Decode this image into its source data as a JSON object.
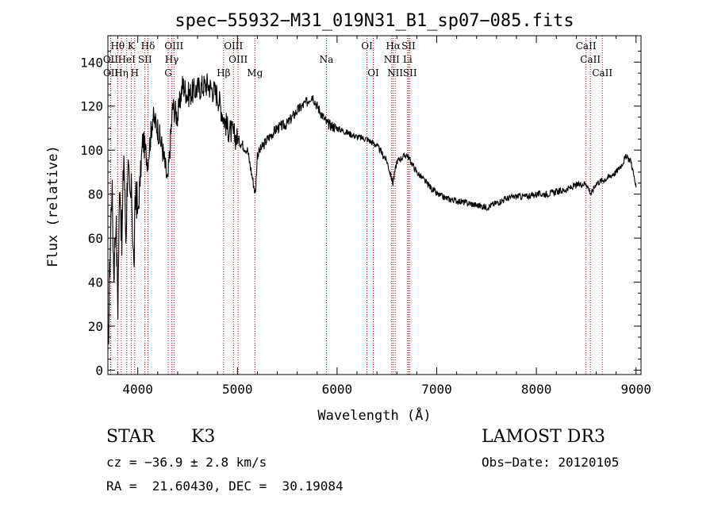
{
  "chart_data": {
    "type": "line",
    "title": "spec−55932−M31_019N31_B1_sp07−085.fits",
    "xlabel": "Wavelength (Å)",
    "ylabel": "Flux (relative)",
    "xlim": [
      3700,
      9050
    ],
    "ylim": [
      -2,
      152
    ],
    "x_ticks": [
      4000,
      5000,
      6000,
      7000,
      8000,
      9000
    ],
    "y_ticks": [
      0,
      20,
      40,
      60,
      80,
      100,
      120,
      140
    ],
    "grid": false,
    "series": [
      {
        "name": "flux",
        "x": [
          3700,
          3720,
          3740,
          3760,
          3780,
          3800,
          3820,
          3840,
          3860,
          3880,
          3900,
          3920,
          3940,
          3960,
          3980,
          4000,
          4050,
          4100,
          4150,
          4200,
          4250,
          4300,
          4350,
          4400,
          4450,
          4500,
          4600,
          4700,
          4800,
          4860,
          4900,
          5000,
          5100,
          5180,
          5200,
          5300,
          5400,
          5500,
          5600,
          5700,
          5750,
          5800,
          5900,
          6000,
          6100,
          6200,
          6300,
          6400,
          6500,
          6560,
          6600,
          6700,
          6800,
          6900,
          7000,
          7100,
          7200,
          7300,
          7400,
          7500,
          7600,
          7700,
          7800,
          7900,
          8000,
          8100,
          8200,
          8300,
          8400,
          8500,
          8550,
          8600,
          8700,
          8800,
          8850,
          8900,
          8950,
          9000
        ],
        "values": [
          2,
          50,
          85,
          45,
          70,
          30,
          90,
          55,
          100,
          60,
          95,
          75,
          80,
          45,
          85,
          70,
          105,
          95,
          115,
          110,
          100,
          85,
          120,
          115,
          130,
          125,
          128,
          130,
          125,
          115,
          110,
          105,
          100,
          80,
          98,
          105,
          110,
          112,
          118,
          122,
          125,
          120,
          112,
          110,
          108,
          106,
          105,
          102,
          95,
          85,
          95,
          98,
          90,
          85,
          80,
          78,
          77,
          76,
          75,
          74,
          76,
          78,
          79,
          79,
          80,
          80,
          81,
          82,
          84,
          85,
          80,
          85,
          87,
          90,
          93,
          97,
          95,
          83
        ]
      }
    ],
    "line_markers": [
      {
        "label": "Hθ",
        "wavelength": 3798,
        "row": 1
      },
      {
        "label": "K",
        "wavelength": 3934,
        "row": 1
      },
      {
        "label": "Hδ",
        "wavelength": 4102,
        "row": 1
      },
      {
        "label": "OIII",
        "wavelength": 4363,
        "row": 1
      },
      {
        "label": "OIII",
        "wavelength": 4960,
        "row": 1
      },
      {
        "label": "OI",
        "wavelength": 6300,
        "row": 1
      },
      {
        "label": "Hα",
        "wavelength": 6563,
        "row": 1
      },
      {
        "label": "SII",
        "wavelength": 6717,
        "row": 1
      },
      {
        "label": "CaII",
        "wavelength": 8498,
        "row": 1
      },
      {
        "label": "OII",
        "wavelength": 3727,
        "row": 2
      },
      {
        "label": "HeI",
        "wavelength": 3889,
        "row": 2
      },
      {
        "label": "SII",
        "wavelength": 4072,
        "row": 2
      },
      {
        "label": "Hγ",
        "wavelength": 4341,
        "row": 2
      },
      {
        "label": "OIII",
        "wavelength": 5007,
        "row": 2
      },
      {
        "label": "Na",
        "wavelength": 5893,
        "row": 2
      },
      {
        "label": "NII",
        "wavelength": 6548,
        "row": 2
      },
      {
        "label": "Li",
        "wavelength": 6708,
        "row": 2
      },
      {
        "label": "CaII",
        "wavelength": 8542,
        "row": 2
      },
      {
        "label": "OII",
        "wavelength": 3729,
        "row": 3
      },
      {
        "label": "Hη",
        "wavelength": 3835,
        "row": 3
      },
      {
        "label": "H",
        "wavelength": 3969,
        "row": 3
      },
      {
        "label": "G",
        "wavelength": 4305,
        "row": 3
      },
      {
        "label": "Hβ",
        "wavelength": 4861,
        "row": 3
      },
      {
        "label": "Mg",
        "wavelength": 5175,
        "row": 3
      },
      {
        "label": "OI",
        "wavelength": 6363,
        "row": 3
      },
      {
        "label": "NII",
        "wavelength": 6583,
        "row": 3
      },
      {
        "label": "SII",
        "wavelength": 6731,
        "row": 3
      },
      {
        "label": "CaII",
        "wavelength": 8662,
        "row": 3
      }
    ],
    "marker_color": "#cc0000"
  },
  "info": {
    "object_class": "STAR",
    "subclass": "K3",
    "survey": "LAMOST DR3",
    "velocity": "cz = −36.9 ± 2.8 km/s",
    "obs_date": "Obs−Date: 20120105",
    "coordinates": "RA =  21.60430, DEC =  30.19084"
  }
}
